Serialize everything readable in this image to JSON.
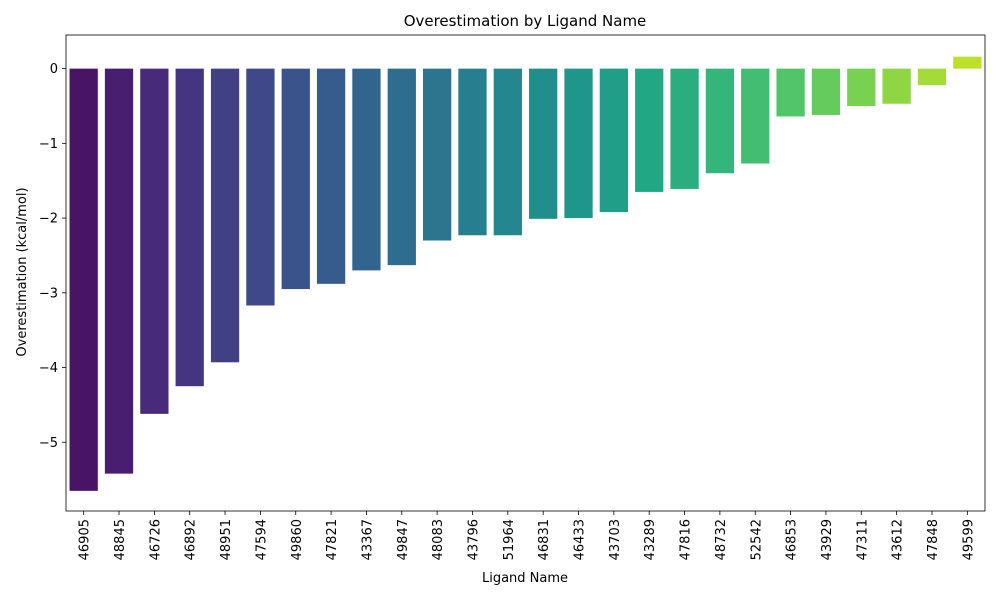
{
  "chart_data": {
    "type": "bar",
    "title": "Overestimation by Ligand Name",
    "xlabel": "Ligand Name",
    "ylabel": "Overestimation (kcal/mol)",
    "ylim": [
      -5.92,
      0.45
    ],
    "yticks": [
      0,
      -1,
      -2,
      -3,
      -4,
      -5
    ],
    "ytick_labels": [
      "0",
      "−1",
      "−2",
      "−3",
      "−4",
      "−5"
    ],
    "grid": false,
    "categories": [
      "46905",
      "48845",
      "46726",
      "46892",
      "48951",
      "47594",
      "49860",
      "47821",
      "43367",
      "49847",
      "48083",
      "43796",
      "51964",
      "46831",
      "46433",
      "43703",
      "43289",
      "47816",
      "48732",
      "52542",
      "46853",
      "43929",
      "47311",
      "43612",
      "47848",
      "49599"
    ],
    "values": [
      -5.65,
      -5.42,
      -4.62,
      -4.25,
      -3.93,
      -3.17,
      -2.95,
      -2.88,
      -2.7,
      -2.63,
      -2.3,
      -2.23,
      -2.23,
      -2.01,
      -2.0,
      -1.92,
      -1.65,
      -1.61,
      -1.4,
      -1.27,
      -0.64,
      -0.62,
      -0.5,
      -0.47,
      -0.22,
      0.16
    ],
    "colors": [
      "#440154",
      "#471365",
      "#482475",
      "#463480",
      "#414487",
      "#3b528b",
      "#355f8d",
      "#2f6c8e",
      "#2a788e",
      "#25848e",
      "#21918c",
      "#1e9c89",
      "#22a884",
      "#2fb47c",
      "#44bf70",
      "#5ec962",
      "#7ad151",
      "#9bd93c",
      "#bddf26",
      "#dfe318",
      "#3b528b",
      "#355f8d",
      "#2f6c8e",
      "#2a788e",
      "#25848e",
      "#21918c"
    ]
  }
}
